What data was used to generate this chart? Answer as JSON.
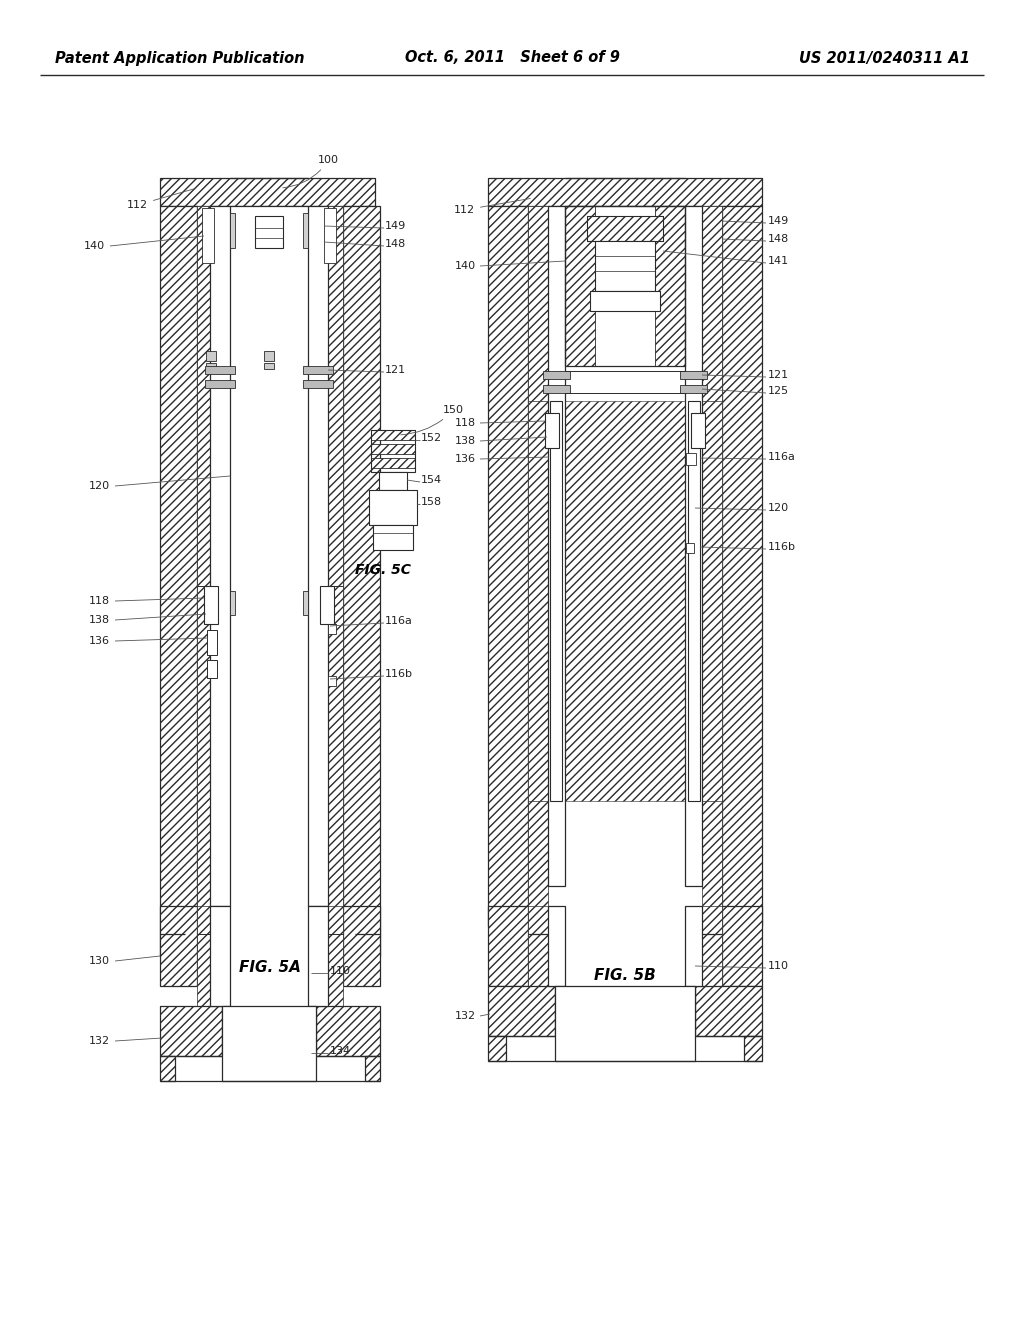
{
  "background_color": "#ffffff",
  "header": {
    "left": "Patent Application Publication",
    "center": "Oct. 6, 2011   Sheet 6 of 9",
    "right": "US 2011/0240311 A1",
    "fontsize": 10.5
  }
}
